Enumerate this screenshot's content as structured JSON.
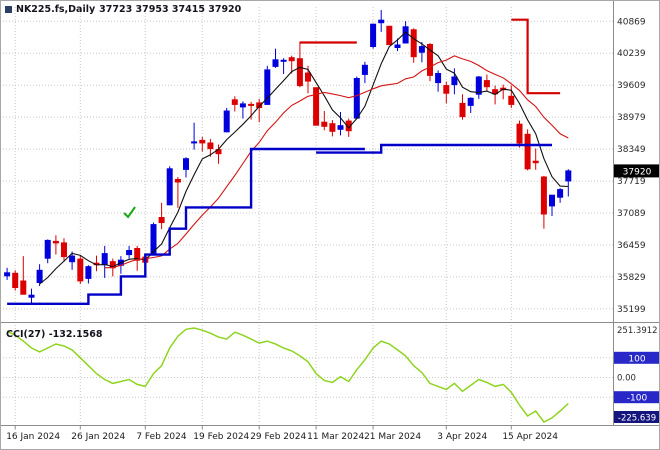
{
  "header": {
    "symbol": "NK225.fs,Daily",
    "ohlc": "37723 37953 37415 37920"
  },
  "indicator": {
    "label": "CCI(27) -132.1568"
  },
  "colors": {
    "bull": "#0000dc",
    "bear": "#dc0000",
    "ma_fast": "#101010",
    "ma_slow": "#d41414",
    "support": "#0000c8",
    "resistance": "#d40000",
    "cci": "#8fd420",
    "grid": "#c8c8c8",
    "axis_text": "#2a2a2a",
    "date_text": "#1a1a1a",
    "tag_bg": "#000000",
    "tag_text": "#ffffff",
    "level_tag_bg": "#2828c8",
    "min_tag_bg": "#15157e",
    "panel_border": "#8c8c8c"
  },
  "price_axis": {
    "labels": [
      40869,
      40239,
      39609,
      38979,
      38349,
      37719,
      37089,
      36459,
      35829,
      35199
    ],
    "current": "37920"
  },
  "time_axis": {
    "labels": [
      {
        "text": "16 Jan 2024",
        "i": 1
      },
      {
        "text": "26 Jan 2024",
        "i": 9
      },
      {
        "text": "7 Feb 2024",
        "i": 17
      },
      {
        "text": "19 Feb 2024",
        "i": 24
      },
      {
        "text": "29 Feb 2024",
        "i": 31
      },
      {
        "text": "11 Mar 2024",
        "i": 38
      },
      {
        "text": "21 Mar 2024",
        "i": 45
      },
      {
        "text": "3 Apr 2024",
        "i": 54
      },
      {
        "text": "15 Apr 2024",
        "i": 62
      }
    ]
  },
  "cci_axis": {
    "max": "251.3912",
    "upper": "100",
    "zero": "0.00",
    "lower": "-100",
    "min": "-225.639"
  },
  "chart_data": {
    "type": "candlestick",
    "symbol": "NK225.fs",
    "timeframe": "Daily",
    "title": "NK225.fs,Daily 37723 37953 37415 37920",
    "y_range": [
      35000,
      41150
    ],
    "ma_fast_period": 5,
    "ma_slow_period": 13,
    "dates": [
      "2024-01-15",
      "2024-01-16",
      "2024-01-17",
      "2024-01-18",
      "2024-01-19",
      "2024-01-22",
      "2024-01-23",
      "2024-01-24",
      "2024-01-25",
      "2024-01-26",
      "2024-01-29",
      "2024-01-30",
      "2024-01-31",
      "2024-02-01",
      "2024-02-02",
      "2024-02-05",
      "2024-02-06",
      "2024-02-07",
      "2024-02-08",
      "2024-02-09",
      "2024-02-13",
      "2024-02-14",
      "2024-02-15",
      "2024-02-16",
      "2024-02-19",
      "2024-02-20",
      "2024-02-21",
      "2024-02-22",
      "2024-02-26",
      "2024-02-27",
      "2024-02-28",
      "2024-02-29",
      "2024-03-01",
      "2024-03-04",
      "2024-03-05",
      "2024-03-06",
      "2024-03-07",
      "2024-03-08",
      "2024-03-11",
      "2024-03-12",
      "2024-03-13",
      "2024-03-14",
      "2024-03-15",
      "2024-03-18",
      "2024-03-19",
      "2024-03-21",
      "2024-03-22",
      "2024-03-25",
      "2024-03-26",
      "2024-03-27",
      "2024-03-28",
      "2024-03-29",
      "2024-04-01",
      "2024-04-02",
      "2024-04-03",
      "2024-04-04",
      "2024-04-05",
      "2024-04-08",
      "2024-04-09",
      "2024-04-10",
      "2024-04-11",
      "2024-04-12",
      "2024-04-15",
      "2024-04-16",
      "2024-04-17",
      "2024-04-18",
      "2024-04-19",
      "2024-04-22",
      "2024-04-23",
      "2024-04-24"
    ],
    "ohlc": [
      [
        35850,
        36010,
        35770,
        35910
      ],
      [
        35900,
        35960,
        35560,
        35620
      ],
      [
        35750,
        36240,
        35480,
        35490
      ],
      [
        35430,
        35600,
        35280,
        35470
      ],
      [
        35720,
        36080,
        35650,
        35960
      ],
      [
        36200,
        36570,
        36100,
        36550
      ],
      [
        36530,
        36650,
        36270,
        36500
      ],
      [
        36500,
        36590,
        36130,
        36230
      ],
      [
        36130,
        36330,
        35970,
        36240
      ],
      [
        36180,
        36240,
        35690,
        35750
      ],
      [
        35800,
        36060,
        35700,
        36030
      ],
      [
        36100,
        36250,
        35940,
        36070
      ],
      [
        36070,
        36440,
        35810,
        36290
      ],
      [
        36130,
        36190,
        35840,
        36010
      ],
      [
        36060,
        36240,
        35890,
        36160
      ],
      [
        36270,
        36440,
        36190,
        36350
      ],
      [
        36390,
        36440,
        35950,
        36160
      ],
      [
        36220,
        36260,
        35980,
        36120
      ],
      [
        36300,
        36900,
        36280,
        36860
      ],
      [
        37000,
        37290,
        36770,
        36900
      ],
      [
        37250,
        38010,
        37240,
        37960
      ],
      [
        37750,
        37800,
        37190,
        37700
      ],
      [
        37950,
        38190,
        37790,
        38160
      ],
      [
        38480,
        38870,
        38340,
        38490
      ],
      [
        38520,
        38590,
        38300,
        38470
      ],
      [
        38470,
        38550,
        38200,
        38360
      ],
      [
        38340,
        38440,
        38060,
        38260
      ],
      [
        38690,
        39160,
        38680,
        39100
      ],
      [
        39320,
        39390,
        39090,
        39230
      ],
      [
        39180,
        39290,
        38950,
        39240
      ],
      [
        39230,
        39280,
        38930,
        39210
      ],
      [
        39260,
        39340,
        38880,
        39170
      ],
      [
        39230,
        39990,
        39220,
        39910
      ],
      [
        39980,
        40330,
        39950,
        40110
      ],
      [
        40080,
        40140,
        39830,
        40100
      ],
      [
        40150,
        40190,
        39840,
        40090
      ],
      [
        40130,
        40470,
        39570,
        39600
      ],
      [
        39850,
        39990,
        39450,
        39690
      ],
      [
        39560,
        39560,
        38820,
        38820
      ],
      [
        38880,
        39100,
        38720,
        38800
      ],
      [
        38850,
        38920,
        38600,
        38700
      ],
      [
        38740,
        39080,
        38620,
        38810
      ],
      [
        38900,
        38950,
        38590,
        38710
      ],
      [
        38960,
        39780,
        38950,
        39740
      ],
      [
        39820,
        40070,
        39650,
        40000
      ],
      [
        40370,
        40820,
        40330,
        40810
      ],
      [
        40840,
        41090,
        40660,
        40890
      ],
      [
        40770,
        40780,
        40400,
        40410
      ],
      [
        40350,
        40530,
        40280,
        40400
      ],
      [
        40440,
        40870,
        40440,
        40760
      ],
      [
        40700,
        40730,
        40050,
        40170
      ],
      [
        40260,
        40460,
        40060,
        40370
      ],
      [
        40410,
        40440,
        39690,
        39800
      ],
      [
        39660,
        39900,
        39480,
        39840
      ],
      [
        39600,
        39680,
        39250,
        39450
      ],
      [
        39620,
        39940,
        39430,
        39770
      ],
      [
        39250,
        39430,
        38930,
        38990
      ],
      [
        39210,
        39370,
        39060,
        39350
      ],
      [
        39430,
        39790,
        39340,
        39770
      ],
      [
        39700,
        39820,
        39480,
        39580
      ],
      [
        39520,
        39600,
        39230,
        39440
      ],
      [
        39550,
        39620,
        39330,
        39520
      ],
      [
        39390,
        39600,
        39160,
        39230
      ],
      [
        38840,
        38910,
        38380,
        38470
      ],
      [
        38640,
        38740,
        37930,
        37960
      ],
      [
        38110,
        38360,
        37940,
        38080
      ],
      [
        37800,
        37820,
        36780,
        37070
      ],
      [
        37230,
        37440,
        37030,
        37440
      ],
      [
        37400,
        37580,
        37290,
        37550
      ],
      [
        37723,
        37953,
        37415,
        37920
      ]
    ],
    "levels": {
      "blue": [
        [
          [
            0,
            35300
          ],
          [
            10,
            35300
          ],
          [
            10,
            35480
          ],
          [
            14,
            35480
          ],
          [
            14,
            35840
          ],
          [
            17,
            35840
          ],
          [
            17,
            36270
          ],
          [
            20,
            36270
          ],
          [
            20,
            36780
          ],
          [
            22,
            36780
          ],
          [
            22,
            37200
          ],
          [
            30,
            37200
          ],
          [
            30,
            38350
          ],
          [
            44,
            38350
          ]
        ],
        [
          [
            38,
            38280
          ],
          [
            46,
            38280
          ],
          [
            46,
            38430
          ],
          [
            67,
            38430
          ]
        ]
      ],
      "red": [
        [
          [
            36,
            40450
          ],
          [
            43,
            40450
          ]
        ],
        [
          [
            62,
            40900
          ],
          [
            64,
            40900
          ],
          [
            64,
            39450
          ],
          [
            68,
            39450
          ]
        ]
      ]
    },
    "marker": {
      "i": 15,
      "price": 37090,
      "color": "#18a818",
      "type": "green-check"
    },
    "cci": {
      "period": 27,
      "current": -132.1568,
      "scale_max": 251.3912,
      "scale_min": -225.639,
      "levels": [
        100,
        0,
        -100
      ],
      "values": [
        235,
        215,
        185,
        150,
        130,
        150,
        170,
        160,
        140,
        100,
        60,
        20,
        -10,
        -30,
        -20,
        -10,
        -35,
        -45,
        20,
        60,
        150,
        210,
        245,
        251.3912,
        240,
        225,
        205,
        195,
        230,
        215,
        195,
        175,
        185,
        170,
        150,
        135,
        110,
        80,
        20,
        -15,
        -25,
        5,
        -20,
        40,
        90,
        150,
        185,
        170,
        140,
        110,
        60,
        25,
        -30,
        -45,
        -60,
        -30,
        -70,
        -40,
        -10,
        -25,
        -45,
        -35,
        -75,
        -140,
        -195,
        -170,
        -225.639,
        -205,
        -170,
        -132.1568
      ]
    }
  }
}
